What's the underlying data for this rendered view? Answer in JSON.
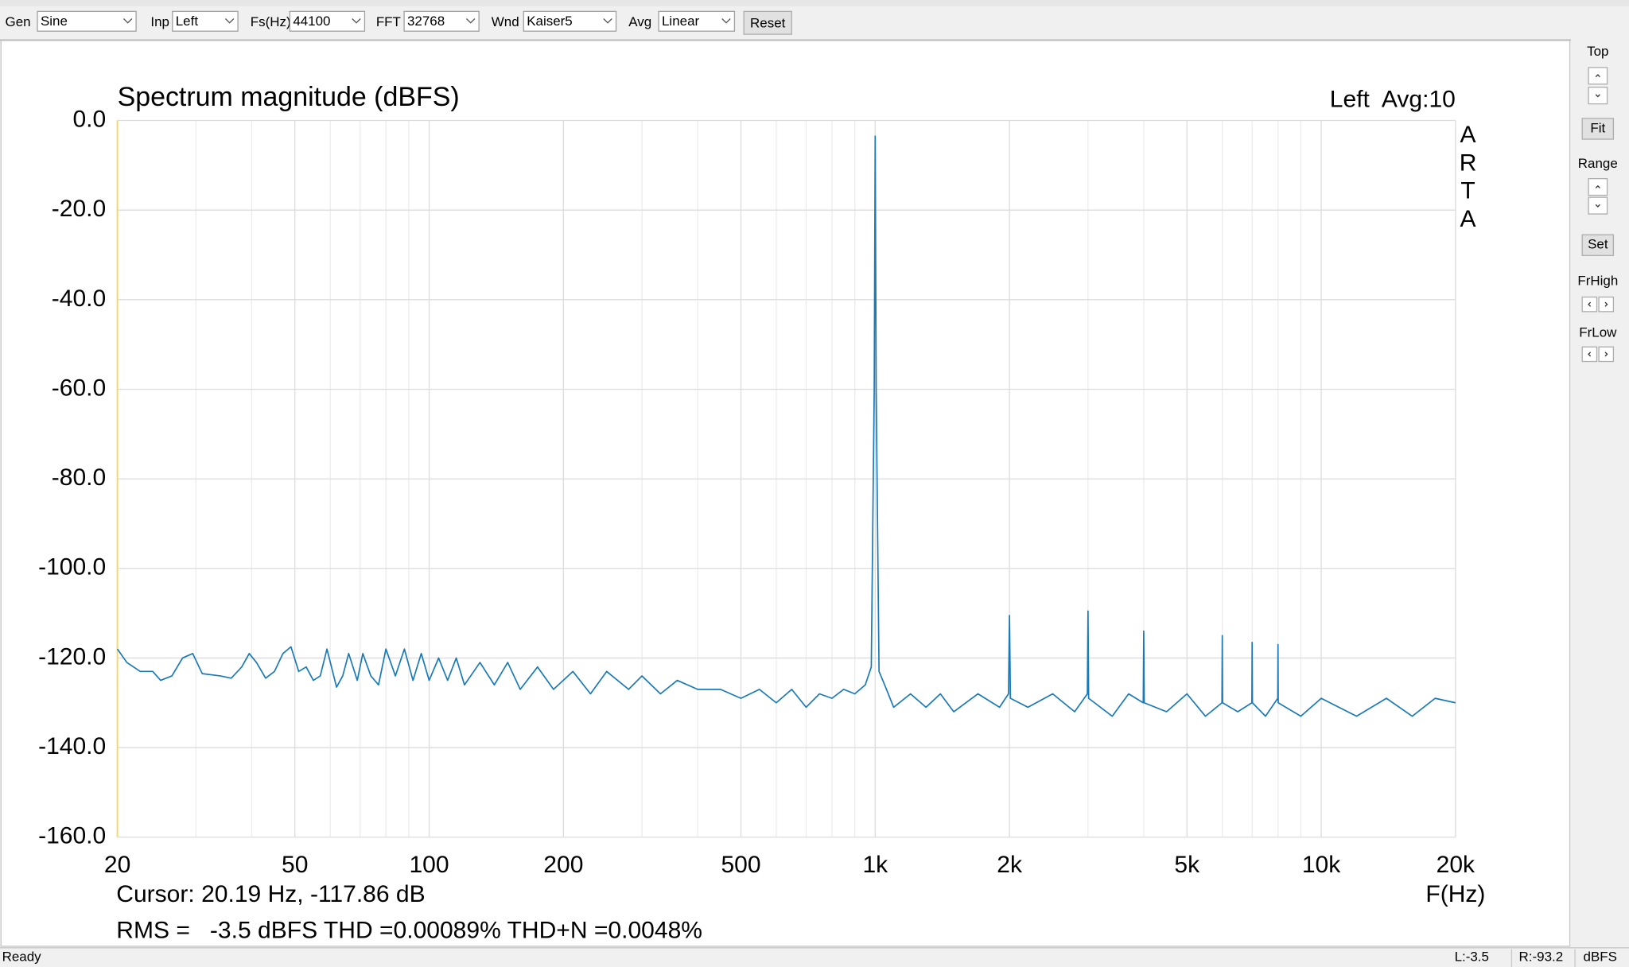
{
  "toolbar": {
    "fields": [
      {
        "label": "Gen",
        "value": "Sine"
      },
      {
        "label": "Inp",
        "value": "Left"
      },
      {
        "label": "Fs(Hz)",
        "value": "44100"
      },
      {
        "label": "FFT",
        "value": "32768"
      },
      {
        "label": "Wnd",
        "value": "Kaiser5"
      },
      {
        "label": "Avg",
        "value": "Linear"
      }
    ],
    "reset": "Reset"
  },
  "side_panel": {
    "top": "Top",
    "fit": "Fit",
    "range": "Range",
    "set": "Set",
    "frhigh": "FrHigh",
    "frlow": "FrLow"
  },
  "status_bar": {
    "state": "Ready",
    "left": "L:-3.5",
    "right": "R:-93.2",
    "unit": "dBFS"
  },
  "chart_data": {
    "type": "line",
    "title": "Spectrum magnitude (dBFS)",
    "channel_label": "Left  Avg:10",
    "watermark": [
      "A",
      "R",
      "T",
      "A"
    ],
    "x_label": "F(Hz)",
    "cursor": "Cursor: 20.19 Hz, -117.86 dB",
    "measurement": "RMS =   -3.5 dBFS THD =0.00089% THD+N =0.0048%",
    "log_x": true,
    "grid": true,
    "color": "#1a7ab8",
    "xlim": [
      20,
      20000
    ],
    "ylim": [
      -160,
      0
    ],
    "xticks": [
      20,
      50,
      100,
      200,
      500,
      {
        "value": 1000,
        "label": "1k"
      },
      {
        "value": 2000,
        "label": "2k"
      },
      {
        "value": 5000,
        "label": "5k"
      },
      {
        "value": 10000,
        "label": "10k"
      },
      {
        "value": 20000,
        "label": "20k"
      }
    ],
    "x_minor_grid": [
      30,
      40,
      60,
      70,
      80,
      90,
      300,
      400,
      600,
      700,
      800,
      900,
      3000,
      4000,
      6000,
      7000,
      8000,
      9000
    ],
    "yticks": [
      {
        "value": 0,
        "label": "0.0"
      },
      {
        "value": -20,
        "label": "-20.0"
      },
      {
        "value": -40,
        "label": "-40.0"
      },
      {
        "value": -60,
        "label": "-60.0"
      },
      {
        "value": -80,
        "label": "-80.0"
      },
      {
        "value": -100,
        "label": "-100.0"
      },
      {
        "value": -120,
        "label": "-120.0"
      },
      {
        "value": -140,
        "label": "-140.0"
      },
      {
        "value": -160,
        "label": "-160.0"
      }
    ],
    "x": [
      20,
      21,
      22.5,
      24,
      25,
      26.5,
      28,
      29.5,
      31,
      34,
      36,
      38,
      39.5,
      41,
      43,
      45,
      47,
      49,
      51,
      53,
      55,
      57,
      59,
      62,
      64,
      66,
      69,
      71,
      74,
      77,
      80,
      84,
      88,
      92,
      96,
      100,
      105,
      110,
      115,
      120,
      130,
      140,
      150,
      160,
      175,
      190,
      210,
      230,
      250,
      280,
      300,
      330,
      360,
      400,
      450,
      500,
      550,
      600,
      650,
      700,
      750,
      800,
      850,
      900,
      950,
      980,
      995,
      1000,
      1005,
      1020,
      1050,
      1100,
      1200,
      1300,
      1400,
      1500,
      1700,
      1900,
      1990,
      2000,
      2010,
      2200,
      2500,
      2800,
      2990,
      3000,
      3010,
      3400,
      3700,
      3990,
      4000,
      4010,
      4500,
      5000,
      5500,
      5990,
      6000,
      6010,
      6500,
      6990,
      7000,
      7010,
      7500,
      7990,
      8000,
      8010,
      9000,
      10000,
      12000,
      14000,
      16000,
      18000,
      20000
    ],
    "values": [
      -118,
      -121,
      -123,
      -123,
      -125,
      -124,
      -120,
      -119,
      -123.5,
      -124,
      -124.5,
      -122,
      -119,
      -121,
      -124.5,
      -123,
      -119,
      -117.5,
      -123,
      -122,
      -125,
      -124,
      -118,
      -126.5,
      -124,
      -119,
      -125,
      -119,
      -124,
      -126,
      -118,
      -124,
      -118,
      -125,
      -119,
      -125,
      -120,
      -125,
      -120,
      -126,
      -121,
      -126,
      -121,
      -127,
      -122,
      -127,
      -123,
      -128,
      -123,
      -127,
      -124,
      -128,
      -125,
      -127,
      -127,
      -129,
      -127,
      -130,
      -127,
      -131,
      -128,
      -129,
      -127,
      -128,
      -126,
      -122,
      -60,
      -3.5,
      -60,
      -123,
      -126,
      -131,
      -128,
      -131,
      -128,
      -132,
      -128,
      -131,
      -128,
      -110.5,
      -129,
      -131,
      -128,
      -132,
      -128,
      -109.5,
      -129,
      -133,
      -128,
      -130,
      -114,
      -130,
      -132,
      -128,
      -133,
      -130,
      -115,
      -130,
      -132,
      -130,
      -116.5,
      -130,
      -133,
      -129,
      -117,
      -130,
      -133,
      -129,
      -133,
      -129,
      -133,
      -129,
      -130
    ]
  }
}
